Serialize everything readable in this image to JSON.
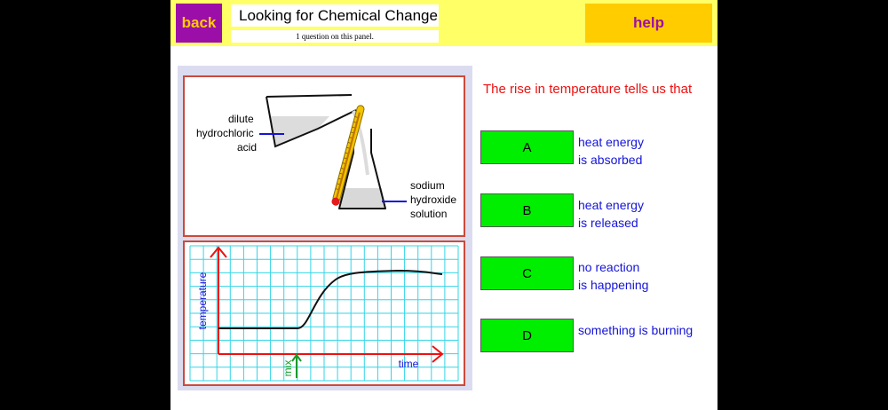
{
  "header": {
    "back_label": "back",
    "title": "Looking for Chemical Change",
    "subtitle": "1 question on this panel.",
    "help_label": "help"
  },
  "apparatus": {
    "acid_label": [
      "dilute",
      "hydrochloric",
      "acid"
    ],
    "base_label": [
      "sodium",
      "hydroxide",
      "solution"
    ]
  },
  "graph": {
    "y_label": "temperature",
    "x_label": "time",
    "mix_label": "mix"
  },
  "question": "The rise in temperature tells us that",
  "options": [
    {
      "letter": "A",
      "lines": [
        "heat energy",
        "is absorbed"
      ]
    },
    {
      "letter": "B",
      "lines": [
        "heat energy",
        "is released"
      ]
    },
    {
      "letter": "C",
      "lines": [
        "no reaction",
        "is happening"
      ]
    },
    {
      "letter": "D",
      "lines": [
        "something is burning"
      ]
    }
  ],
  "colors": {
    "background": "#000000",
    "header": "#ffff66",
    "back_button": "#9b0fa8",
    "help_button": "#ffcc00",
    "option_button": "#00ee00",
    "question_text": "#ee1111",
    "option_text": "#1414d8",
    "grid": "#33d6e6",
    "axis": "#ee1111",
    "mix_marker": "#1a9a2a"
  }
}
